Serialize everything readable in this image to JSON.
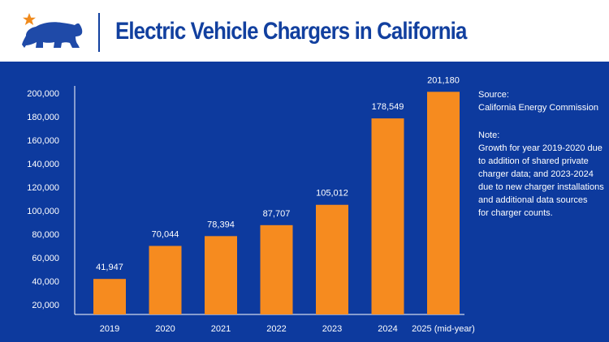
{
  "header": {
    "title": "Electric Vehicle Chargers in California",
    "colors": {
      "bear": "#1f4aa8",
      "star": "#f08a1c",
      "title": "#12409f"
    }
  },
  "colors": {
    "background": "#0d3a9e",
    "bar": "#f68b1f",
    "text": "#ffffff"
  },
  "notes": {
    "source_label": "Source:",
    "source_text": "California Energy Commission",
    "note_label": "Note:",
    "note_lines": [
      "Growth for year 2019-2020 due",
      "to addition of shared private",
      "charger data; and 2023-2024",
      "due to new charger installations",
      "and additional data sources",
      "for charger counts."
    ]
  },
  "chart_data": {
    "type": "bar",
    "title": "Electric Vehicle Chargers in California",
    "xlabel": "",
    "ylabel": "",
    "categories": [
      "2019",
      "2020",
      "2021",
      "2022",
      "2023",
      "2024",
      "2025 (mid-year)"
    ],
    "values": [
      41947,
      70044,
      78394,
      87707,
      105012,
      178549,
      201180
    ],
    "value_labels": [
      "41,947",
      "70,044",
      "78,394",
      "87,707",
      "105,012",
      "178,549",
      "201,180"
    ],
    "yticks": [
      20000,
      40000,
      60000,
      80000,
      100000,
      120000,
      140000,
      160000,
      180000,
      200000
    ],
    "ytick_labels": [
      "20,000",
      "40,000",
      "60,000",
      "80,000",
      "100,000",
      "120,000",
      "140,000",
      "160,000",
      "180,000",
      "200,000"
    ],
    "ylim": [
      10000,
      210000
    ],
    "grid": false,
    "legend": "none"
  }
}
